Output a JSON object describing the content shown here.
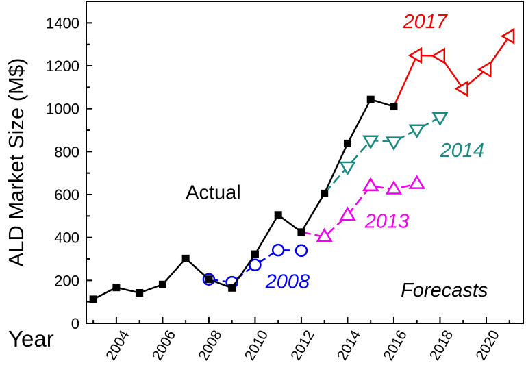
{
  "chart_data": {
    "type": "line",
    "title": "",
    "xlabel": "Year",
    "ylabel": "ALD Market Size (M$)",
    "xlim": [
      2002.7,
      2021.6
    ],
    "ylim": [
      0,
      1500
    ],
    "x_ticks": [
      2004,
      2006,
      2008,
      2010,
      2012,
      2014,
      2016,
      2018,
      2020
    ],
    "y_ticks": [
      0,
      200,
      400,
      600,
      800,
      1000,
      1200,
      1400
    ],
    "x_tick_labels": [
      "2004",
      "2006",
      "2008",
      "2010",
      "2012",
      "2014",
      "2016",
      "2018",
      "2020"
    ],
    "y_tick_labels": [
      "0",
      "200",
      "400",
      "600",
      "800",
      "1000",
      "1200",
      "1400"
    ],
    "grid": false,
    "legend": "none",
    "series": [
      {
        "name": "Actual",
        "color": "#000000",
        "marker": "filled-square",
        "dashed": false,
        "x": [
          2003,
          2004,
          2005,
          2006,
          2007,
          2008,
          2009,
          2010,
          2011,
          2012,
          2013,
          2014,
          2015,
          2016
        ],
        "y": [
          112,
          167,
          142,
          181,
          302,
          205,
          165,
          322,
          505,
          425,
          605,
          838,
          1043,
          1010
        ]
      },
      {
        "name": "2008",
        "color": "#0000ee",
        "marker": "open-circle",
        "dashed": true,
        "x": [
          2008,
          2009,
          2010,
          2011,
          2012
        ],
        "y": [
          205,
          191,
          272,
          341,
          339
        ]
      },
      {
        "name": "2013",
        "color": "#ee00ee",
        "marker": "open-triangle-up",
        "dashed": true,
        "x": [
          2012,
          2013,
          2014,
          2015,
          2016,
          2017
        ],
        "y": [
          425,
          403,
          503,
          640,
          625,
          650
        ]
      },
      {
        "name": "2014",
        "color": "#1a8a80",
        "marker": "open-triangle-down",
        "dashed": true,
        "x": [
          2013,
          2014,
          2015,
          2016,
          2017,
          2018
        ],
        "y": [
          605,
          730,
          852,
          846,
          903,
          960
        ]
      },
      {
        "name": "2017",
        "color": "#ee0000",
        "marker": "open-triangle-left",
        "dashed": false,
        "x": [
          2016,
          2017,
          2018,
          2019,
          2020,
          2021
        ],
        "y": [
          1010,
          1248,
          1246,
          1093,
          1183,
          1338
        ]
      }
    ],
    "annotations": [
      {
        "key": "actual",
        "text": "Actual",
        "color": "#000000",
        "italic": false,
        "x": 2007.0,
        "y": 580
      },
      {
        "key": "y2008",
        "text": "2008",
        "color": "#0000ee",
        "italic": true,
        "x": 2010.45,
        "y": 165
      },
      {
        "key": "y2013",
        "text": "2013",
        "color": "#ee00ee",
        "italic": true,
        "x": 2014.75,
        "y": 445
      },
      {
        "key": "y2014",
        "text": "2014",
        "color": "#1a8a80",
        "italic": true,
        "x": 2018.0,
        "y": 775
      },
      {
        "key": "y2017",
        "text": "2017",
        "color": "#ee0000",
        "italic": true,
        "x": 2016.4,
        "y": 1375
      },
      {
        "key": "forecasts",
        "text": "Forecasts",
        "color": "#000000",
        "italic": true,
        "x": 2016.3,
        "y": 125
      }
    ]
  }
}
